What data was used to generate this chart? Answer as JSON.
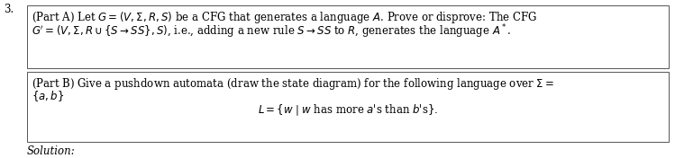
{
  "number": "3.",
  "box1_line1": "(Part A) Let $G = (V, \\Sigma, R, S)$ be a CFG that generates a language $A$. Prove or disprove: The CFG",
  "box1_line2": "$G^{\\prime} = (V, \\Sigma, R \\cup \\{S \\rightarrow SS\\}, S)$, i.e., adding a new rule $S \\rightarrow SS$ to $R$, generates the language $A^*$.",
  "box2_line1": "(Part B) Give a pushdown automata (draw the state diagram) for the following language over $\\Sigma =$",
  "box2_line2": "$\\{a, b\\}$",
  "box2_line3": "$L = \\{w \\mid w$ has more $a$'s than $b$'s$\\}.$",
  "solution_label": "Solution:",
  "bg_color": "#ffffff",
  "text_color": "#000000",
  "box_edge_color": "#555555",
  "fontsize": 8.5
}
